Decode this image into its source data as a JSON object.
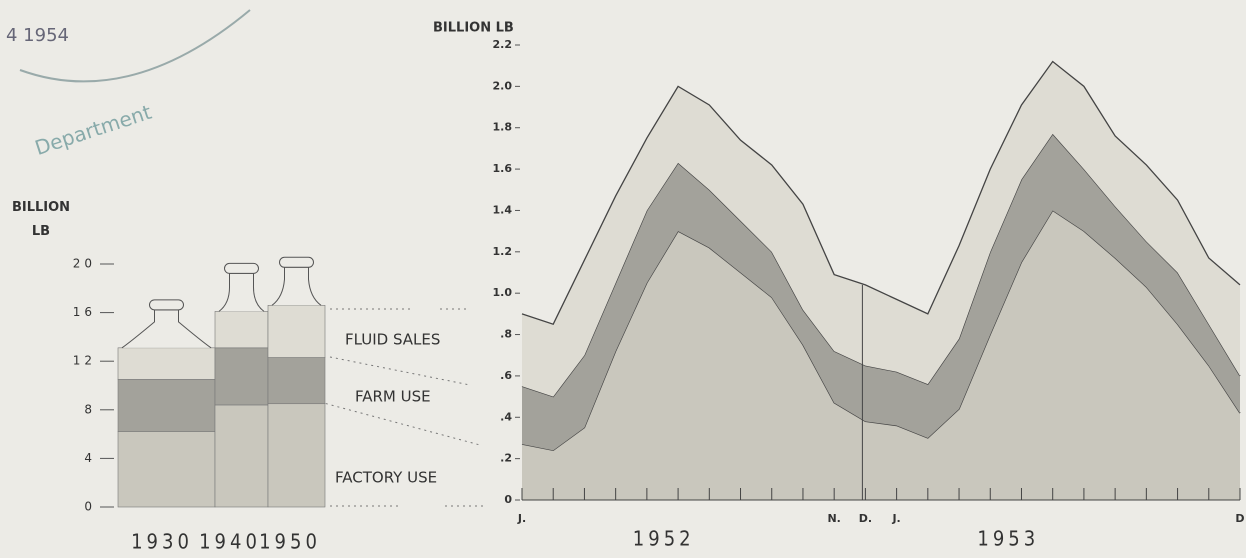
{
  "stamp": {
    "date": "4 1954",
    "text": "Department"
  },
  "chart_data": [
    {
      "type": "bar",
      "ylabel": "BILLION LB",
      "categories": [
        "1930",
        "1940",
        "1950"
      ],
      "series": [
        {
          "name": "FACTORY USE",
          "color": "#c9c7bd",
          "values": [
            6.2,
            8.4,
            8.5
          ]
        },
        {
          "name": "FARM USE",
          "color": "#a3a29b",
          "values": [
            4.3,
            4.7,
            3.8
          ]
        },
        {
          "name": "FLUID SALES",
          "color": "#dedcd3",
          "values": [
            2.6,
            3.0,
            4.3
          ]
        }
      ],
      "ylim": [
        0,
        20
      ],
      "yticks": [
        0,
        4,
        8,
        12,
        16,
        20
      ]
    },
    {
      "type": "area",
      "ylabel": "BILLION LB",
      "categories": [
        "J.",
        null,
        null,
        null,
        null,
        null,
        null,
        null,
        null,
        null,
        "N.",
        "D.",
        "J.",
        null,
        null,
        null,
        null,
        null,
        null,
        null,
        null,
        null,
        null,
        "D"
      ],
      "year_labels": [
        "1952",
        "1953"
      ],
      "series": [
        {
          "color": "#c9c7bd",
          "values": [
            0.27,
            0.24,
            0.35,
            0.72,
            1.05,
            1.3,
            1.22,
            1.1,
            0.98,
            0.75,
            0.47,
            0.38,
            0.36,
            0.3,
            0.44,
            0.8,
            1.15,
            1.4,
            1.3,
            1.17,
            1.03,
            0.85,
            0.65,
            0.42
          ]
        },
        {
          "color": "#a3a29b",
          "values": [
            0.28,
            0.26,
            0.35,
            0.33,
            0.35,
            0.33,
            0.28,
            0.25,
            0.22,
            0.17,
            0.25,
            0.27,
            0.26,
            0.26,
            0.34,
            0.4,
            0.4,
            0.37,
            0.3,
            0.25,
            0.22,
            0.25,
            0.2,
            0.18
          ]
        },
        {
          "color": "#dedcd3",
          "values": [
            0.35,
            0.35,
            0.46,
            0.42,
            0.35,
            0.37,
            0.41,
            0.39,
            0.42,
            0.51,
            0.37,
            0.39,
            0.35,
            0.34,
            0.45,
            0.4,
            0.36,
            0.35,
            0.4,
            0.34,
            0.37,
            0.35,
            0.32,
            0.44
          ]
        }
      ],
      "ylim": [
        0,
        2.2
      ],
      "yticks": [
        0,
        {
          "value": 0.2,
          "label": ".2"
        },
        {
          "value": 0.4,
          "label": ".4"
        },
        {
          "value": 0.6,
          "label": ".6"
        },
        {
          "value": 0.8,
          "label": ".8"
        },
        {
          "value": 1.0,
          "label": "1.0"
        },
        {
          "value": 1.2,
          "label": "1.2"
        },
        {
          "value": 1.4,
          "label": "1.4"
        },
        {
          "value": 1.6,
          "label": "1.6"
        },
        {
          "value": 1.8,
          "label": "1.8"
        },
        {
          "value": 2.0,
          "label": "2.0"
        },
        {
          "value": 2.2,
          "label": "2.2"
        }
      ]
    }
  ]
}
